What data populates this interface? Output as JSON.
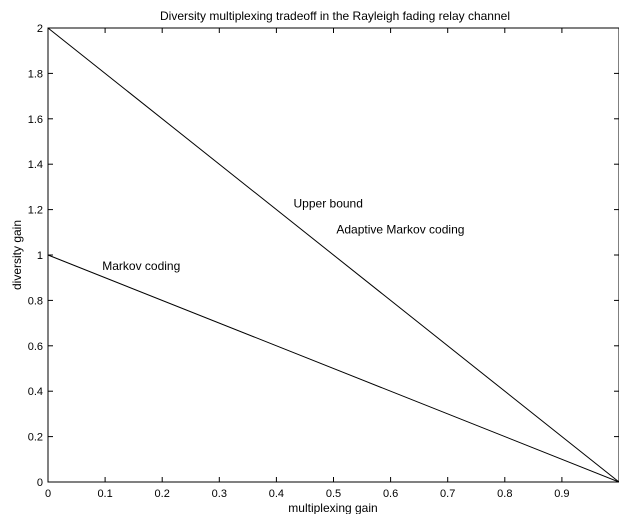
{
  "chart_data": {
    "type": "line",
    "title": "Diversity multiplexing tradeoff in the Rayleigh fading relay channel",
    "xlabel": "multiplexing gain",
    "ylabel": "diversity gain",
    "xlim": [
      0,
      1
    ],
    "ylim": [
      0,
      2
    ],
    "xticks": [
      0,
      0.1,
      0.2,
      0.3,
      0.4,
      0.5,
      0.6,
      0.7,
      0.8,
      0.9
    ],
    "xtick_labels": [
      "0",
      "0.1",
      "0.2",
      "0.3",
      "0.4",
      "0.5",
      "0.6",
      "0.7",
      "0.8",
      "0.9"
    ],
    "yticks": [
      0,
      0.2,
      0.4,
      0.6,
      0.8,
      1,
      1.2,
      1.4,
      1.6,
      1.8,
      2
    ],
    "ytick_labels": [
      "0",
      "0.2",
      "0.4",
      "0.6",
      "0.8",
      "1",
      "1.2",
      "1.4",
      "1.6",
      "1.8",
      "2"
    ],
    "grid": false,
    "series": [
      {
        "key": "upper",
        "x": [
          0,
          1
        ],
        "y": [
          2,
          0
        ],
        "color": "#000000"
      },
      {
        "key": "markov",
        "x": [
          0,
          1
        ],
        "y": [
          1,
          0
        ],
        "color": "#000000"
      }
    ],
    "annotations": [
      {
        "text": "Upper bound",
        "x": 0.43,
        "y": 1.21
      },
      {
        "text": "Adaptive Markov coding",
        "x": 0.505,
        "y": 1.095
      },
      {
        "text": "Markov coding",
        "x": 0.095,
        "y": 0.935
      }
    ]
  }
}
